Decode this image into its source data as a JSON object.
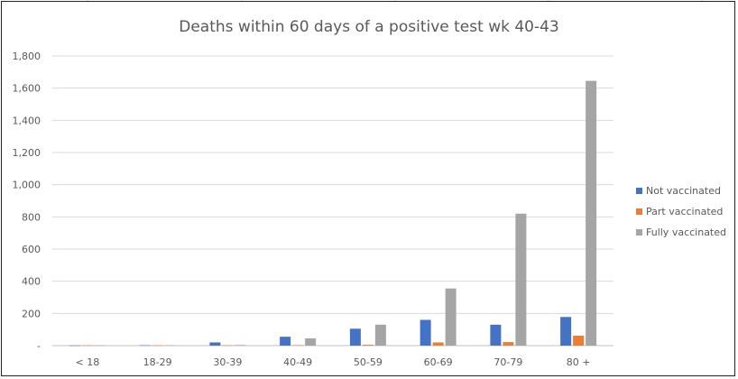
{
  "chart_data": {
    "type": "bar",
    "title": "Deaths within 60 days of a positive test wk 40-43",
    "categories": [
      "< 18",
      "18-29",
      "30-39",
      "40-49",
      "50-59",
      "60-69",
      "70-79",
      "80 +"
    ],
    "series": [
      {
        "name": "Not vaccinated",
        "color": "#4472C4",
        "values": [
          1,
          2,
          20,
          55,
          105,
          160,
          130,
          178
        ]
      },
      {
        "name": "Part vaccinated",
        "color": "#ED7D31",
        "values": [
          1,
          1,
          2,
          3,
          5,
          20,
          22,
          62
        ]
      },
      {
        "name": "Fully vaccinated",
        "color": "#A5A5A5",
        "values": [
          1,
          2,
          4,
          45,
          130,
          355,
          820,
          1645
        ]
      }
    ],
    "yticks": [
      "-",
      "200",
      "400",
      "600",
      "800",
      "1,000",
      "1,200",
      "1,400",
      "1,600",
      "1,800"
    ],
    "ylim": [
      0,
      1800
    ],
    "grid": true,
    "legend_position": "right"
  }
}
